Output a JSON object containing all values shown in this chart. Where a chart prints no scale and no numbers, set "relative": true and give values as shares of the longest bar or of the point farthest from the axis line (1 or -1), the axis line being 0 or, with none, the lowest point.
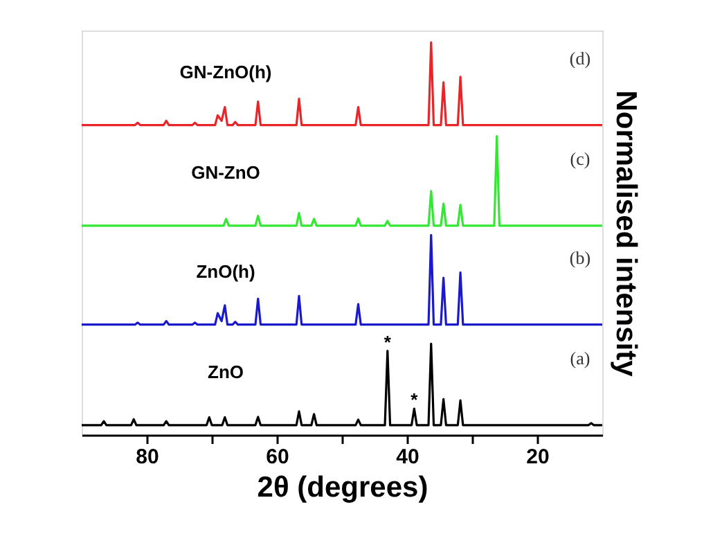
{
  "chart_data": {
    "type": "line",
    "xlabel": "2θ (degrees)",
    "ylabel": "Normalised intensity",
    "relative": true,
    "xlim": [
      90,
      10
    ],
    "xticks": [
      {
        "value": 20,
        "label": "20"
      },
      {
        "value": 30,
        "label": null
      },
      {
        "value": 40,
        "label": "40"
      },
      {
        "value": 50,
        "label": null
      },
      {
        "value": 60,
        "label": "60"
      },
      {
        "value": 70,
        "label": null
      },
      {
        "value": 80,
        "label": "80"
      }
    ],
    "marker": "none",
    "line_style": "solid",
    "series": [
      {
        "color": "#e8262a",
        "x": [
          10,
          31.4,
          31.8,
          32.2,
          34.0,
          34.4,
          34.8,
          35.9,
          36.3,
          36.7,
          47.1,
          47.5,
          47.9,
          56.2,
          56.6,
          57.0,
          62.5,
          62.9,
          63.3,
          66.0,
          66.4,
          66.8,
          67.6,
          68.0,
          68.5,
          69.1,
          69.5,
          72.2,
          72.6,
          73.0,
          76.6,
          77.0,
          77.4,
          81.0,
          81.4,
          81.8,
          90
        ],
        "values": [
          0.789,
          0.789,
          0.912,
          0.789,
          0.789,
          0.898,
          0.789,
          0.789,
          1.0,
          0.789,
          0.789,
          0.835,
          0.789,
          0.789,
          0.856,
          0.789,
          0.789,
          0.849,
          0.789,
          0.789,
          0.797,
          0.789,
          0.789,
          0.835,
          0.8,
          0.814,
          0.789,
          0.789,
          0.795,
          0.789,
          0.789,
          0.8,
          0.789,
          0.789,
          0.795,
          0.789,
          0.789
        ]
      },
      {
        "color": "#33e833",
        "x": [
          10,
          25.8,
          26.2,
          26.6,
          31.4,
          31.8,
          32.2,
          34.0,
          34.4,
          34.8,
          35.9,
          36.3,
          36.7,
          42.6,
          43.0,
          43.4,
          47.1,
          47.5,
          47.9,
          53.9,
          54.3,
          54.7,
          56.2,
          56.6,
          57.0,
          62.5,
          62.9,
          63.3,
          67.4,
          67.8,
          68.2,
          90
        ],
        "values": [
          0.533,
          0.533,
          0.761,
          0.533,
          0.533,
          0.586,
          0.533,
          0.533,
          0.589,
          0.533,
          0.533,
          0.621,
          0.533,
          0.533,
          0.545,
          0.533,
          0.533,
          0.551,
          0.533,
          0.533,
          0.55,
          0.533,
          0.533,
          0.565,
          0.533,
          0.533,
          0.558,
          0.533,
          0.533,
          0.55,
          0.533,
          0.533
        ]
      },
      {
        "color": "#1a1acc",
        "x": [
          10,
          31.4,
          31.8,
          32.2,
          34.0,
          34.4,
          34.8,
          35.9,
          36.3,
          36.7,
          47.1,
          47.5,
          47.9,
          56.2,
          56.6,
          57.0,
          62.5,
          62.9,
          63.3,
          66.0,
          66.4,
          66.8,
          67.6,
          68.0,
          68.5,
          69.1,
          69.5,
          72.2,
          72.6,
          73.0,
          76.6,
          77.0,
          77.4,
          81.0,
          81.4,
          81.8,
          90
        ],
        "values": [
          0.281,
          0.281,
          0.414,
          0.281,
          0.281,
          0.4,
          0.281,
          0.281,
          0.509,
          0.281,
          0.281,
          0.333,
          0.281,
          0.281,
          0.354,
          0.281,
          0.281,
          0.347,
          0.281,
          0.281,
          0.288,
          0.281,
          0.281,
          0.33,
          0.29,
          0.31,
          0.281,
          0.281,
          0.286,
          0.281,
          0.281,
          0.29,
          0.281,
          0.281,
          0.286,
          0.281,
          0.281
        ]
      },
      {
        "color": "#000000",
        "x": [
          10,
          11.3,
          11.7,
          12.1,
          31.4,
          31.8,
          32.2,
          34.0,
          34.4,
          34.8,
          35.9,
          36.3,
          36.7,
          38.5,
          38.9,
          39.3,
          42.6,
          43.0,
          43.4,
          47.1,
          47.5,
          47.9,
          53.9,
          54.3,
          54.7,
          56.2,
          56.6,
          57.0,
          62.5,
          62.9,
          63.3,
          67.6,
          68.0,
          68.4,
          70.0,
          70.4,
          70.8,
          76.6,
          77.0,
          77.4,
          81.6,
          82.0,
          82.4,
          86.2,
          86.6,
          87.0,
          90
        ],
        "values": [
          0.025,
          0.025,
          0.03,
          0.025,
          0.025,
          0.088,
          0.025,
          0.025,
          0.091,
          0.025,
          0.025,
          0.232,
          0.025,
          0.025,
          0.067,
          0.025,
          0.025,
          0.214,
          0.025,
          0.025,
          0.039,
          0.025,
          0.025,
          0.053,
          0.025,
          0.025,
          0.06,
          0.025,
          0.025,
          0.046,
          0.025,
          0.025,
          0.045,
          0.025,
          0.025,
          0.045,
          0.025,
          0.025,
          0.035,
          0.025,
          0.025,
          0.04,
          0.025,
          0.025,
          0.035,
          0.025,
          0.025
        ]
      }
    ],
    "annotations": [
      "GN-ZnO(h)",
      "GN-ZnO",
      "ZnO(h)",
      "ZnO",
      "(d)",
      "(c)",
      "(b)",
      "(a)",
      {
        "text": "*",
        "x": 43.0,
        "y": 0.214
      },
      {
        "text": "*",
        "x": 38.9,
        "y": 0.067
      }
    ]
  }
}
